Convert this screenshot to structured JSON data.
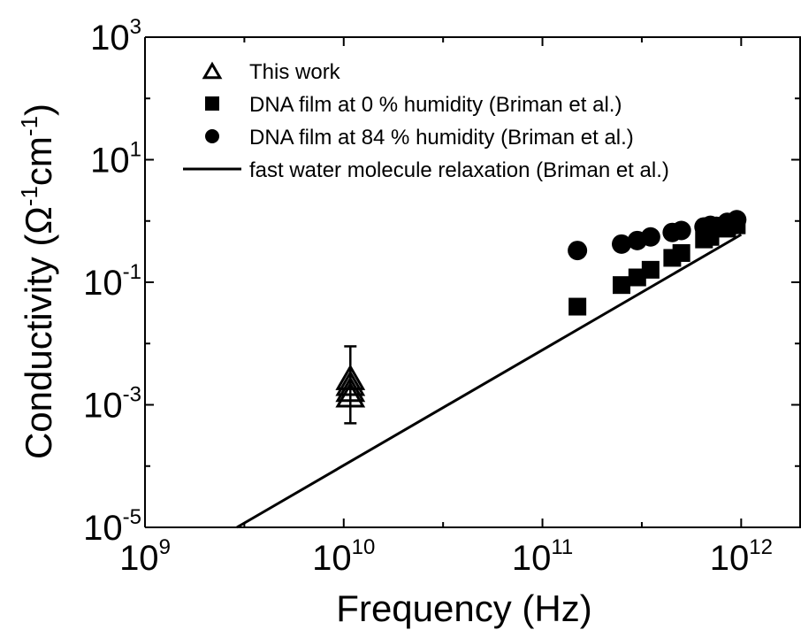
{
  "chart_data": {
    "type": "scatter",
    "title": "",
    "xlabel": "Frequency (Hz)",
    "ylabel_parts": [
      "Conductivity (",
      "Ω",
      "-1",
      "cm",
      "-1",
      ")"
    ],
    "x_scale": "log",
    "y_scale": "log",
    "xlim": [
      1000000000.0,
      2000000000000.0
    ],
    "ylim": [
      1e-05,
      1000.0
    ],
    "x_ticks": [
      {
        "value": 1000000000.0,
        "base": "10",
        "exp": "9"
      },
      {
        "value": 10000000000.0,
        "base": "10",
        "exp": "10"
      },
      {
        "value": 100000000000.0,
        "base": "10",
        "exp": "11"
      },
      {
        "value": 1000000000000.0,
        "base": "10",
        "exp": "12"
      }
    ],
    "y_ticks": [
      {
        "value": 1e-05,
        "base": "10",
        "exp": "-5"
      },
      {
        "value": 0.001,
        "base": "10",
        "exp": "-3"
      },
      {
        "value": 0.1,
        "base": "10",
        "exp": "-1"
      },
      {
        "value": 10.0,
        "base": "10",
        "exp": "1"
      },
      {
        "value": 1000.0,
        "base": "10",
        "exp": "3"
      }
    ],
    "grid": false,
    "legend_position": "top-left",
    "series": [
      {
        "name": "This work",
        "marker": "open-triangle",
        "color": "#000000",
        "points": [
          {
            "x": 10800000000.0,
            "y": 0.0025,
            "yerr_low": 0.0005,
            "yerr_high": 0.009
          },
          {
            "x": 10800000000.0,
            "y": 0.002
          },
          {
            "x": 10800000000.0,
            "y": 0.0016
          },
          {
            "x": 10800000000.0,
            "y": 0.0013
          }
        ]
      },
      {
        "name": "DNA film at 0 % humidity (Briman et al.)",
        "marker": "filled-square",
        "color": "#000000",
        "points": [
          {
            "x": 150000000000.0,
            "y": 0.04
          },
          {
            "x": 250000000000.0,
            "y": 0.09
          },
          {
            "x": 300000000000.0,
            "y": 0.12
          },
          {
            "x": 350000000000.0,
            "y": 0.16
          },
          {
            "x": 450000000000.0,
            "y": 0.25
          },
          {
            "x": 500000000000.0,
            "y": 0.3
          },
          {
            "x": 650000000000.0,
            "y": 0.5
          },
          {
            "x": 700000000000.0,
            "y": 0.55
          },
          {
            "x": 850000000000.0,
            "y": 0.75
          },
          {
            "x": 950000000000.0,
            "y": 0.85
          }
        ]
      },
      {
        "name": "DNA film at 84 % humidity (Briman et al.)",
        "marker": "filled-circle",
        "color": "#000000",
        "points": [
          {
            "x": 150000000000.0,
            "y": 0.33
          },
          {
            "x": 250000000000.0,
            "y": 0.42
          },
          {
            "x": 300000000000.0,
            "y": 0.48
          },
          {
            "x": 350000000000.0,
            "y": 0.55
          },
          {
            "x": 450000000000.0,
            "y": 0.65
          },
          {
            "x": 500000000000.0,
            "y": 0.7
          },
          {
            "x": 650000000000.0,
            "y": 0.8
          },
          {
            "x": 700000000000.0,
            "y": 0.85
          },
          {
            "x": 750000000000.0,
            "y": 0.82
          },
          {
            "x": 850000000000.0,
            "y": 0.95
          },
          {
            "x": 950000000000.0,
            "y": 1.05
          }
        ]
      },
      {
        "name": "fast water molecule relaxation (Briman et al.)",
        "marker": "line",
        "color": "#000000",
        "points": [
          {
            "x": 2900000000.0,
            "y": 1e-05
          },
          {
            "x": 1000000000000.0,
            "y": 0.6
          }
        ]
      }
    ]
  }
}
